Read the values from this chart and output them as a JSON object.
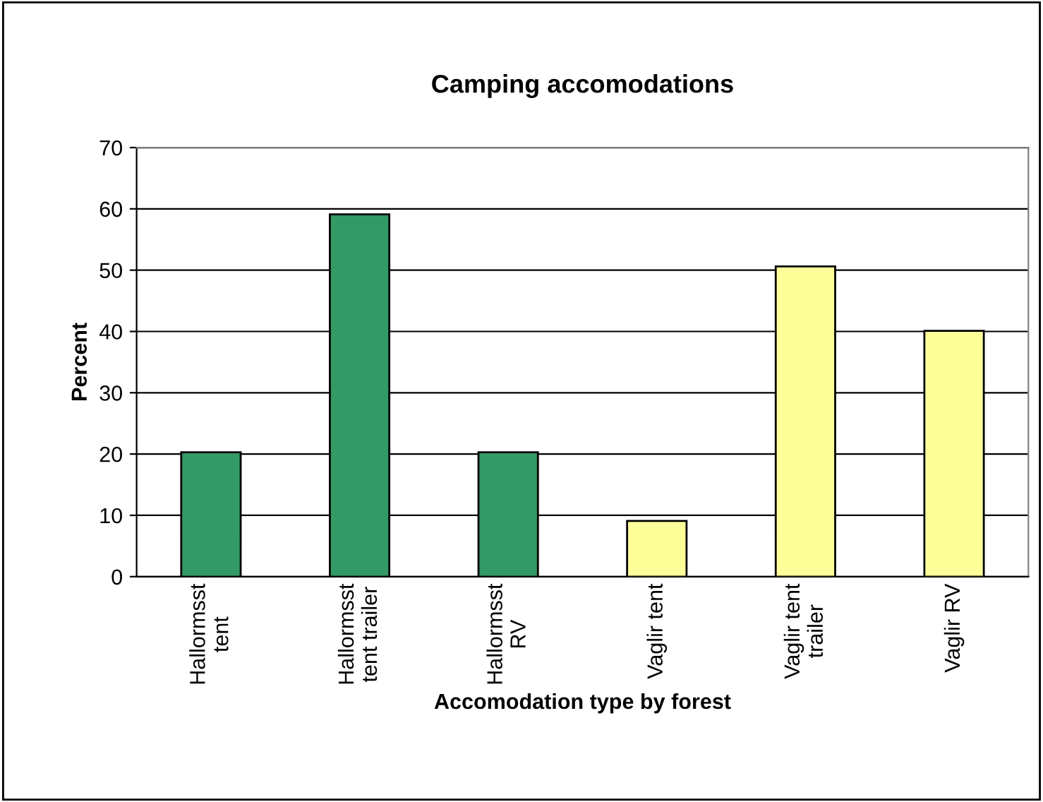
{
  "chart_data": {
    "type": "bar",
    "title": "Camping accomodations",
    "xlabel": "Accomodation type by forest",
    "ylabel": "Percent",
    "categories": [
      "Hallormsst tent",
      "Hallormsst tent trailer",
      "Hallormsst RV",
      "Vaglir tent",
      "Vaglir tent trailer",
      "Vaglir RV"
    ],
    "values": [
      20.3,
      59.1,
      20.3,
      9.1,
      50.6,
      40.1
    ],
    "colors": [
      "#339966",
      "#339966",
      "#339966",
      "#ffff99",
      "#ffff99",
      "#ffff99"
    ],
    "ylim": [
      0,
      70
    ],
    "yticks": [
      0,
      10,
      20,
      30,
      40,
      50,
      60,
      70
    ],
    "grid": "y"
  }
}
